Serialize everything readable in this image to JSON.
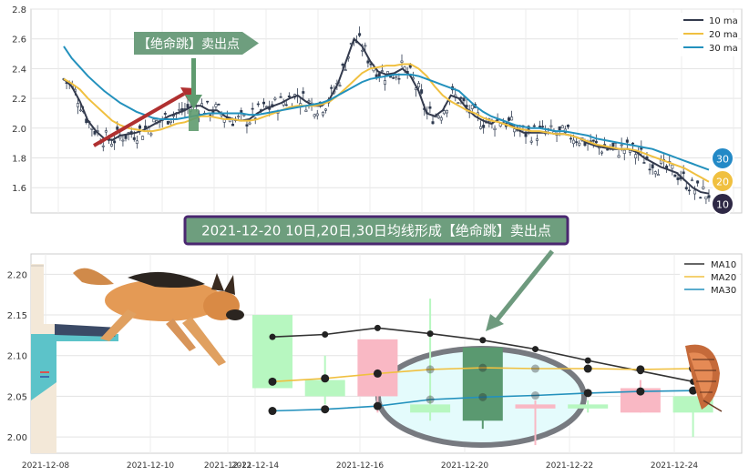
{
  "chart_data": [
    {
      "type": "line",
      "ylim": [
        1.43,
        2.8
      ],
      "yticks": [
        "1.6",
        "1.8",
        "2.0",
        "2.2",
        "2.4",
        "2.6",
        "2.8"
      ],
      "xlabel": "",
      "ylabel": "",
      "legend_position": "top-right",
      "grid": true,
      "series": [
        {
          "name": "10 ma",
          "color": "#333a4d",
          "values": [
            2.33,
            2.28,
            2.18,
            2.05,
            1.98,
            1.93,
            1.92,
            1.95,
            1.96,
            1.97,
            1.99,
            2.02,
            2.05,
            2.08,
            2.1,
            2.12,
            2.15,
            2.15,
            2.12,
            2.12,
            2.08,
            2.06,
            2.05,
            2.06,
            2.1,
            2.13,
            2.15,
            2.17,
            2.2,
            2.22,
            2.18,
            2.15,
            2.15,
            2.2,
            2.3,
            2.45,
            2.6,
            2.55,
            2.45,
            2.38,
            2.36,
            2.37,
            2.4,
            2.35,
            2.25,
            2.1,
            2.08,
            2.12,
            2.22,
            2.2,
            2.13,
            2.08,
            2.05,
            2.03,
            2.06,
            2.04,
            2.0,
            1.97,
            1.97,
            1.97,
            1.97,
            1.96,
            1.96,
            1.95,
            1.93,
            1.9,
            1.88,
            1.87,
            1.86,
            1.86,
            1.86,
            1.84,
            1.8,
            1.77,
            1.74,
            1.72,
            1.7,
            1.65,
            1.6,
            1.57,
            1.56
          ]
        },
        {
          "name": "20 ma",
          "color": "#f0c040",
          "values": [
            2.33,
            2.3,
            2.26,
            2.2,
            2.15,
            2.1,
            2.05,
            2.02,
            2.0,
            1.99,
            1.98,
            1.98,
            1.99,
            2.01,
            2.03,
            2.04,
            2.06,
            2.08,
            2.08,
            2.07,
            2.06,
            2.06,
            2.05,
            2.05,
            2.06,
            2.08,
            2.1,
            2.12,
            2.14,
            2.15,
            2.15,
            2.15,
            2.16,
            2.18,
            2.22,
            2.27,
            2.32,
            2.37,
            2.4,
            2.41,
            2.42,
            2.42,
            2.43,
            2.43,
            2.4,
            2.35,
            2.28,
            2.22,
            2.18,
            2.15,
            2.12,
            2.1,
            2.07,
            2.05,
            2.04,
            2.02,
            2.0,
            1.99,
            1.98,
            1.98,
            1.97,
            1.96,
            1.96,
            1.95,
            1.93,
            1.91,
            1.89,
            1.88,
            1.87,
            1.86,
            1.86,
            1.85,
            1.83,
            1.81,
            1.79,
            1.77,
            1.75,
            1.73,
            1.7,
            1.67,
            1.64
          ]
        },
        {
          "name": "30 ma",
          "color": "#2391bd",
          "values": [
            2.55,
            2.47,
            2.41,
            2.35,
            2.3,
            2.25,
            2.21,
            2.17,
            2.14,
            2.11,
            2.09,
            2.07,
            2.06,
            2.06,
            2.06,
            2.07,
            2.08,
            2.09,
            2.1,
            2.1,
            2.1,
            2.1,
            2.1,
            2.09,
            2.09,
            2.1,
            2.11,
            2.12,
            2.13,
            2.14,
            2.15,
            2.16,
            2.17,
            2.19,
            2.22,
            2.25,
            2.28,
            2.31,
            2.33,
            2.34,
            2.35,
            2.36,
            2.36,
            2.36,
            2.35,
            2.33,
            2.31,
            2.29,
            2.27,
            2.25,
            2.2,
            2.15,
            2.11,
            2.08,
            2.06,
            2.04,
            2.02,
            2.01,
            2.0,
            2.0,
            1.99,
            1.98,
            1.98,
            1.97,
            1.96,
            1.95,
            1.93,
            1.92,
            1.91,
            1.9,
            1.89,
            1.88,
            1.87,
            1.86,
            1.84,
            1.82,
            1.8,
            1.78,
            1.76,
            1.74,
            1.72
          ]
        }
      ],
      "annotations": {
        "sell_label": "【绝命跳】卖出点",
        "badges": [
          "30",
          "20",
          "10"
        ]
      }
    },
    {
      "type": "candlestick",
      "ylim": [
        1.98,
        2.225
      ],
      "yticks": [
        "2.00",
        "2.05",
        "2.10",
        "2.15",
        "2.20"
      ],
      "x_ticks": [
        "2021-12-08",
        "2021-12-10",
        "2021-12-12",
        "2021-12-14",
        "2021-12-16",
        "2021-12-20",
        "2021-12-22",
        "2021-12-24"
      ],
      "legend_position": "top-right",
      "grid": true,
      "candles": [
        {
          "open": 2.06,
          "close": 2.15,
          "high": 2.15,
          "low": 2.06
        },
        {
          "open": 2.05,
          "close": 2.07,
          "high": 2.1,
          "low": 2.04
        },
        {
          "open": 2.12,
          "close": 2.05,
          "high": 2.12,
          "low": 2.03
        },
        {
          "open": 2.03,
          "close": 2.04,
          "high": 2.17,
          "low": 2.02
        },
        {
          "open": 2.02,
          "close": 2.11,
          "high": 2.11,
          "low": 2.01
        },
        {
          "open": 2.04,
          "close": 2.035,
          "high": 2.045,
          "low": 1.99
        },
        {
          "open": 2.035,
          "close": 2.04,
          "high": 2.045,
          "low": 2.03
        },
        {
          "open": 2.06,
          "close": 2.03,
          "high": 2.07,
          "low": 2.03
        },
        {
          "open": 2.03,
          "close": 2.05,
          "high": 2.05,
          "low": 2.0
        }
      ],
      "series": [
        {
          "name": "MA10",
          "color": "#333333",
          "values": [
            2.123,
            2.126,
            2.134,
            2.127,
            2.119,
            2.108,
            2.094,
            2.081,
            2.068
          ]
        },
        {
          "name": "MA20",
          "color": "#f0c040",
          "values": [
            2.068,
            2.072,
            2.078,
            2.083,
            2.085,
            2.084,
            2.084,
            2.083,
            2.084
          ]
        },
        {
          "name": "MA30",
          "color": "#2391bd",
          "values": [
            2.032,
            2.034,
            2.038,
            2.046,
            2.049,
            2.051,
            2.054,
            2.056,
            2.057
          ]
        }
      ],
      "callout": "2021-12-20 10日,20日,30日均线形成【绝命跳】卖出点"
    }
  ]
}
